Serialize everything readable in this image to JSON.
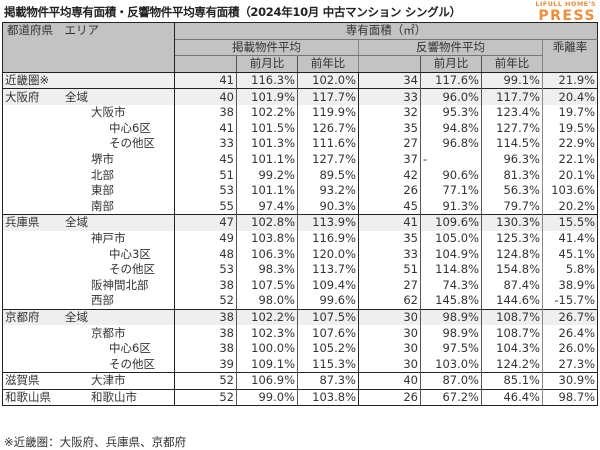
{
  "title": "掲載物件平均専有面積・反響物件平均専有面積（2024年10月 中古マンション シングル）",
  "logo": {
    "top": "LIFULL HOME'S",
    "main": "PRESS",
    "color": "#f08c3a"
  },
  "header": {
    "area_col": "都道府県　エリア",
    "group_title": "専有面積（㎡）",
    "listing_avg": "掲載物件平均",
    "response_avg": "反響物件平均",
    "divergence": "乖離率",
    "mom": "前月比",
    "yoy": "前年比"
  },
  "rows": [
    {
      "pref": "近畿圏※",
      "area": "",
      "indent": 0,
      "l": "41",
      "lm": "116.3%",
      "ly": "102.0%",
      "r": "34",
      "rm": "117.6%",
      "ry": "99.1%",
      "d": "21.9%"
    },
    {
      "pref": "大阪府",
      "area": "全域",
      "indent": 1,
      "l": "40",
      "lm": "101.9%",
      "ly": "117.7%",
      "r": "33",
      "rm": "96.0%",
      "ry": "117.7%",
      "d": "20.4%"
    },
    {
      "pref": "",
      "area": "大阪市",
      "indent": 2,
      "l": "38",
      "lm": "102.2%",
      "ly": "119.9%",
      "r": "32",
      "rm": "95.3%",
      "ry": "123.4%",
      "d": "19.7%"
    },
    {
      "pref": "",
      "area": "中心6区",
      "indent": 3,
      "l": "41",
      "lm": "101.5%",
      "ly": "126.7%",
      "r": "35",
      "rm": "94.8%",
      "ry": "127.7%",
      "d": "19.5%"
    },
    {
      "pref": "",
      "area": "その他区",
      "indent": 3,
      "l": "33",
      "lm": "101.3%",
      "ly": "111.6%",
      "r": "27",
      "rm": "96.8%",
      "ry": "114.5%",
      "d": "22.9%"
    },
    {
      "pref": "",
      "area": "堺市",
      "indent": 2,
      "l": "45",
      "lm": "101.1%",
      "ly": "127.7%",
      "r": "37",
      "rm": "-",
      "ry": "96.3%",
      "d": "22.1%"
    },
    {
      "pref": "",
      "area": "北部",
      "indent": 2,
      "l": "51",
      "lm": "99.2%",
      "ly": "89.5%",
      "r": "42",
      "rm": "90.6%",
      "ry": "81.3%",
      "d": "20.1%"
    },
    {
      "pref": "",
      "area": "東部",
      "indent": 2,
      "l": "53",
      "lm": "101.1%",
      "ly": "93.2%",
      "r": "26",
      "rm": "77.1%",
      "ry": "56.3%",
      "d": "103.6%"
    },
    {
      "pref": "",
      "area": "南部",
      "indent": 2,
      "l": "55",
      "lm": "97.4%",
      "ly": "90.3%",
      "r": "45",
      "rm": "91.3%",
      "ry": "79.7%",
      "d": "20.2%"
    },
    {
      "pref": "兵庫県",
      "area": "全域",
      "indent": 1,
      "l": "47",
      "lm": "102.8%",
      "ly": "113.9%",
      "r": "41",
      "rm": "109.6%",
      "ry": "130.3%",
      "d": "15.5%"
    },
    {
      "pref": "",
      "area": "神戸市",
      "indent": 2,
      "l": "49",
      "lm": "103.8%",
      "ly": "116.9%",
      "r": "35",
      "rm": "105.0%",
      "ry": "125.3%",
      "d": "41.4%"
    },
    {
      "pref": "",
      "area": "中心3区",
      "indent": 3,
      "l": "48",
      "lm": "106.3%",
      "ly": "120.0%",
      "r": "33",
      "rm": "104.9%",
      "ry": "124.8%",
      "d": "45.1%"
    },
    {
      "pref": "",
      "area": "その他区",
      "indent": 3,
      "l": "53",
      "lm": "98.3%",
      "ly": "113.7%",
      "r": "51",
      "rm": "114.8%",
      "ry": "154.8%",
      "d": "5.8%"
    },
    {
      "pref": "",
      "area": "阪神間北部",
      "indent": 2,
      "l": "38",
      "lm": "107.5%",
      "ly": "109.4%",
      "r": "27",
      "rm": "74.3%",
      "ry": "87.4%",
      "d": "38.9%"
    },
    {
      "pref": "",
      "area": "西部",
      "indent": 2,
      "l": "52",
      "lm": "98.0%",
      "ly": "99.6%",
      "r": "62",
      "rm": "145.8%",
      "ry": "144.6%",
      "d": "-15.7%"
    },
    {
      "pref": "京都府",
      "area": "全域",
      "indent": 1,
      "l": "38",
      "lm": "102.2%",
      "ly": "107.5%",
      "r": "30",
      "rm": "98.9%",
      "ry": "108.7%",
      "d": "26.7%"
    },
    {
      "pref": "",
      "area": "京都市",
      "indent": 2,
      "l": "38",
      "lm": "102.3%",
      "ly": "107.6%",
      "r": "30",
      "rm": "98.9%",
      "ry": "108.7%",
      "d": "26.4%"
    },
    {
      "pref": "",
      "area": "中心6区",
      "indent": 3,
      "l": "38",
      "lm": "100.0%",
      "ly": "105.2%",
      "r": "30",
      "rm": "97.5%",
      "ry": "104.3%",
      "d": "26.0%"
    },
    {
      "pref": "",
      "area": "その他区",
      "indent": 3,
      "l": "39",
      "lm": "109.1%",
      "ly": "115.3%",
      "r": "30",
      "rm": "103.0%",
      "ry": "124.2%",
      "d": "27.3%"
    },
    {
      "pref": "滋賀県",
      "area": "大津市",
      "indent": 2,
      "l": "52",
      "lm": "106.9%",
      "ly": "87.3%",
      "r": "40",
      "rm": "87.0%",
      "ry": "85.1%",
      "d": "30.9%"
    },
    {
      "pref": "和歌山県",
      "area": "和歌山市",
      "indent": 2,
      "l": "52",
      "lm": "99.0%",
      "ly": "103.8%",
      "r": "26",
      "rm": "67.2%",
      "ry": "46.4%",
      "d": "98.7%"
    }
  ],
  "footnote": "※近畿圏：大阪府、兵庫県、京都府"
}
